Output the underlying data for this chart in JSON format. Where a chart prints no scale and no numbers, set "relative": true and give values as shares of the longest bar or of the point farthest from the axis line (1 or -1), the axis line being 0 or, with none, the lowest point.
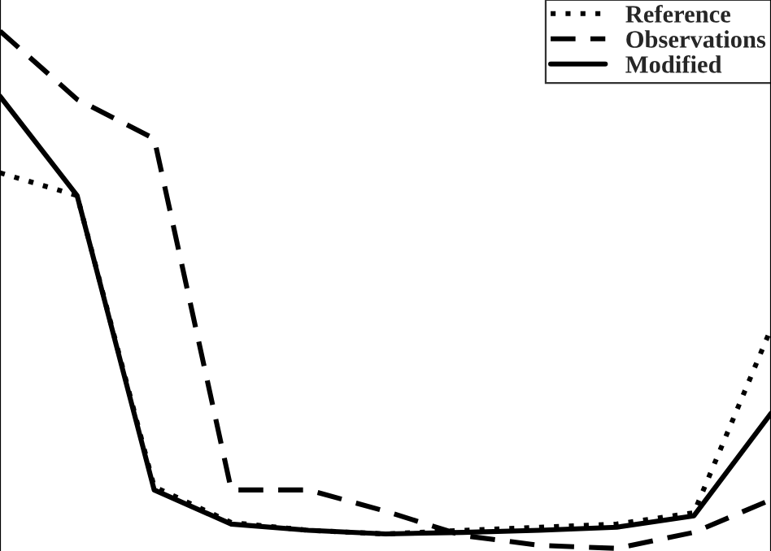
{
  "chart_data": {
    "type": "line",
    "relative": true,
    "categories": [
      null,
      null,
      null,
      null,
      null,
      null,
      null,
      null,
      null,
      null,
      null
    ],
    "legend": "top right",
    "grid": false,
    "series": [
      {
        "name": "Reference",
        "color": "#000000",
        "line_style": "dotted",
        "values": [
          0.726,
          0.682,
          0.119,
          0.05,
          0.035,
          0.028,
          0.035,
          0.041,
          0.047,
          0.069,
          0.425
        ]
      },
      {
        "name": "Observations",
        "color": "#000000",
        "line_style": "dashed",
        "values": [
          1.0,
          0.868,
          0.792,
          0.113,
          0.113,
          0.072,
          0.025,
          0.006,
          0.0,
          0.031,
          0.094
        ]
      },
      {
        "name": "Modified",
        "color": "#000000",
        "line_style": "solid",
        "values": [
          0.874,
          0.682,
          0.113,
          0.047,
          0.035,
          0.028,
          0.031,
          0.035,
          0.041,
          0.063,
          0.261
        ]
      }
    ]
  }
}
